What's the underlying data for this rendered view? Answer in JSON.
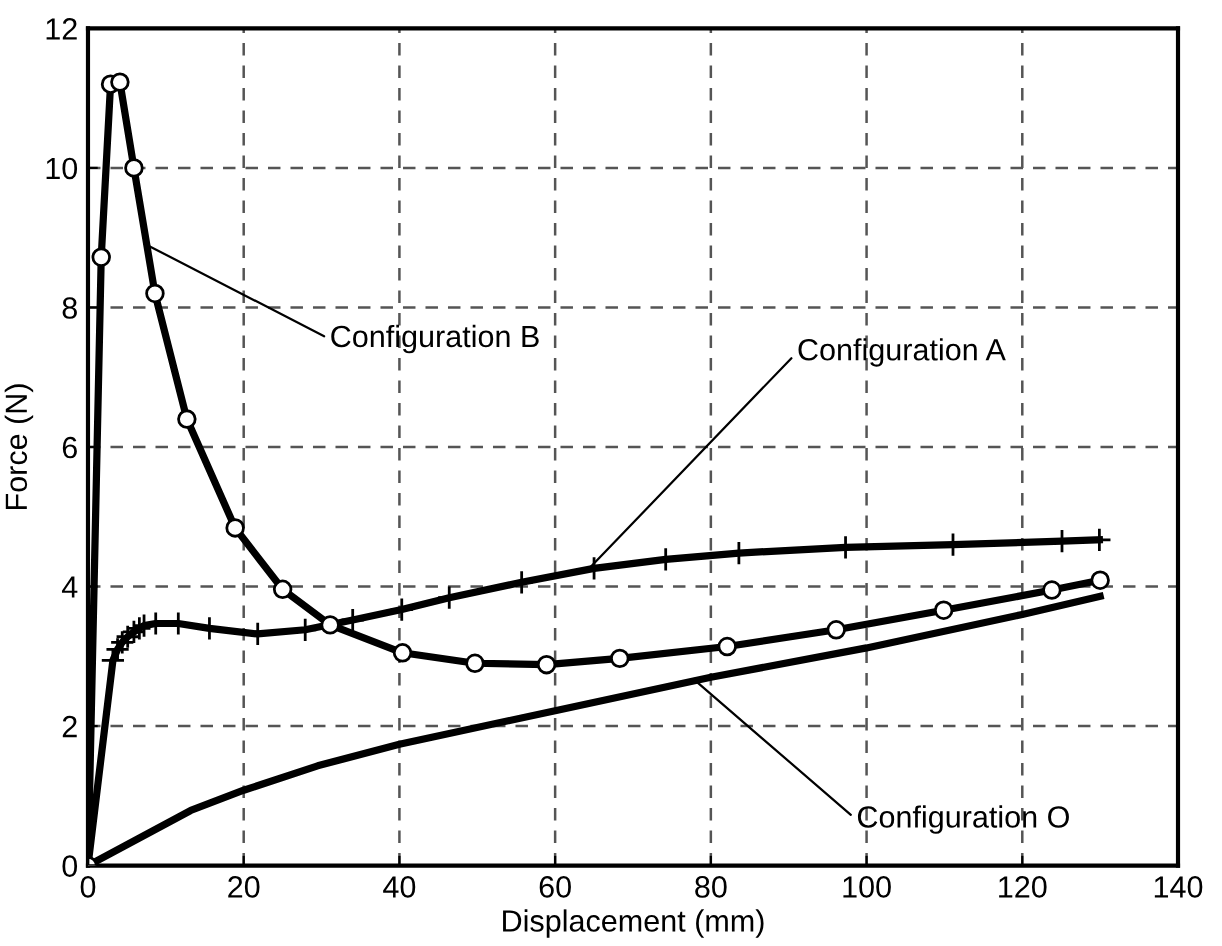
{
  "chart_data": {
    "type": "line",
    "xlabel": "Displacement (mm)",
    "ylabel": "Force (N)",
    "xlim": [
      0,
      140
    ],
    "xticks": [
      0,
      20,
      40,
      60,
      80,
      100,
      120,
      140
    ],
    "ylim": [
      0,
      12
    ],
    "yticks": [
      0,
      2,
      4,
      6,
      8,
      10,
      12
    ],
    "grid": true,
    "line_style": "solid",
    "series": [
      {
        "color": "#000000",
        "marker": "circle",
        "x": [
          0,
          1.7,
          2.9,
          4.1,
          5.9,
          8.6,
          12.7,
          18.9,
          25.0,
          31.1,
          40.4,
          49.7,
          58.9,
          68.3,
          82.1,
          96.1,
          109.9,
          123.8,
          130
        ],
        "values": [
          0,
          8.72,
          11.2,
          11.23,
          10.0,
          8.2,
          6.4,
          4.84,
          3.96,
          3.45,
          3.05,
          2.9,
          2.88,
          2.97,
          3.14,
          3.38,
          3.66,
          3.95,
          4.09
        ]
      },
      {
        "color": "#000000",
        "marker": "cross",
        "x": [
          0,
          3.2,
          3.8,
          4.4,
          5.1,
          5.9,
          6.6,
          7.2,
          8.7,
          11.6,
          15.6,
          21.8,
          27.9,
          34.0,
          40.3,
          46.4,
          55.7,
          65.0,
          74.2,
          83.6,
          97.3,
          111.1,
          125.1,
          129.9
        ],
        "values": [
          0,
          2.94,
          3.1,
          3.2,
          3.28,
          3.35,
          3.4,
          3.44,
          3.47,
          3.47,
          3.4,
          3.32,
          3.38,
          3.52,
          3.67,
          3.84,
          4.06,
          4.26,
          4.39,
          4.48,
          4.56,
          4.6,
          4.65,
          4.67
        ]
      },
      {
        "color": "#000000",
        "marker": "none",
        "x": [
          0,
          13.2,
          20,
          29.5,
          40,
          60,
          80,
          100,
          120,
          130
        ],
        "values": [
          0,
          0.79,
          1.08,
          1.43,
          1.74,
          2.22,
          2.7,
          3.12,
          3.6,
          3.86
        ]
      }
    ],
    "annotations": [
      {
        "text": "Configuration A",
        "x": 64.3,
        "y": 4.25
      },
      {
        "text": "Configuration B",
        "x": 7.5,
        "y": 8.9
      },
      {
        "text": "Configuration O",
        "x": 78,
        "y": 2.65
      }
    ]
  }
}
